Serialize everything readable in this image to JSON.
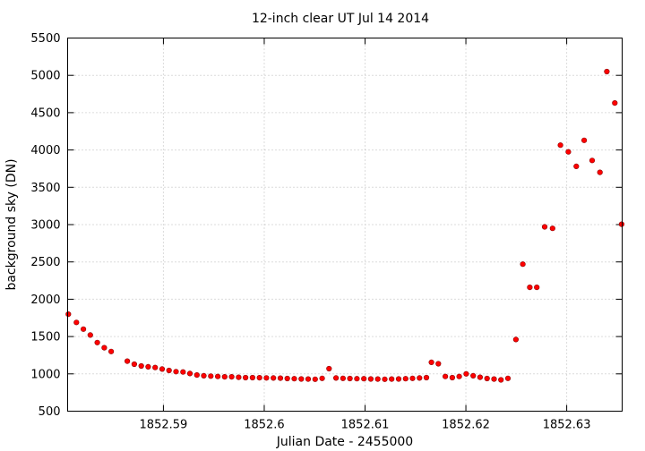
{
  "chart_data": {
    "type": "scatter",
    "title": "12-inch clear UT Jul 14 2014",
    "xlabel": "Julian Date - 2455000",
    "ylabel": "background sky (DN)",
    "xlim": [
      1852.5805,
      1852.6355
    ],
    "ylim": [
      500,
      5500
    ],
    "xticks": [
      1852.59,
      1852.6,
      1852.61,
      1852.62,
      1852.63
    ],
    "xtick_labels": [
      "1852.59",
      "1852.6",
      "1852.61",
      "1852.62",
      "1852.63"
    ],
    "yticks": [
      500,
      1000,
      1500,
      2000,
      2500,
      3000,
      3500,
      4000,
      4500,
      5000,
      5500
    ],
    "ytick_labels": [
      "500",
      "1000",
      "1500",
      "2000",
      "2500",
      "3000",
      "3500",
      "4000",
      "4500",
      "5000",
      "5500"
    ],
    "grid": true,
    "marker_color": "#ff0000",
    "points": [
      [
        1852.58057,
        1800
      ],
      [
        1852.58137,
        1690
      ],
      [
        1852.58206,
        1600
      ],
      [
        1852.58275,
        1520
      ],
      [
        1852.58344,
        1420
      ],
      [
        1852.58413,
        1350
      ],
      [
        1852.58482,
        1300
      ],
      [
        1852.58642,
        1170
      ],
      [
        1852.58711,
        1130
      ],
      [
        1852.5878,
        1105
      ],
      [
        1852.58849,
        1095
      ],
      [
        1852.58918,
        1085
      ],
      [
        1852.58987,
        1065
      ],
      [
        1852.59056,
        1045
      ],
      [
        1852.59125,
        1030
      ],
      [
        1852.59194,
        1025
      ],
      [
        1852.59263,
        1005
      ],
      [
        1852.59332,
        985
      ],
      [
        1852.59401,
        975
      ],
      [
        1852.5947,
        970
      ],
      [
        1852.59539,
        965
      ],
      [
        1852.59608,
        960
      ],
      [
        1852.59677,
        960
      ],
      [
        1852.59746,
        955
      ],
      [
        1852.59815,
        950
      ],
      [
        1852.59884,
        950
      ],
      [
        1852.59953,
        948
      ],
      [
        1852.60022,
        946
      ],
      [
        1852.60091,
        945
      ],
      [
        1852.6016,
        942
      ],
      [
        1852.60229,
        938
      ],
      [
        1852.60298,
        935
      ],
      [
        1852.60367,
        932
      ],
      [
        1852.60436,
        930
      ],
      [
        1852.60505,
        928
      ],
      [
        1852.60574,
        940
      ],
      [
        1852.60643,
        1070
      ],
      [
        1852.60712,
        945
      ],
      [
        1852.60781,
        940
      ],
      [
        1852.6085,
        938
      ],
      [
        1852.60919,
        935
      ],
      [
        1852.60988,
        935
      ],
      [
        1852.61057,
        932
      ],
      [
        1852.61126,
        930
      ],
      [
        1852.61195,
        928
      ],
      [
        1852.61264,
        930
      ],
      [
        1852.61333,
        932
      ],
      [
        1852.61402,
        935
      ],
      [
        1852.61471,
        940
      ],
      [
        1852.6154,
        945
      ],
      [
        1852.61609,
        950
      ],
      [
        1852.61658,
        1155
      ],
      [
        1852.61727,
        1135
      ],
      [
        1852.61796,
        965
      ],
      [
        1852.61865,
        950
      ],
      [
        1852.61934,
        965
      ],
      [
        1852.62003,
        1000
      ],
      [
        1852.62072,
        975
      ],
      [
        1852.62141,
        955
      ],
      [
        1852.6221,
        938
      ],
      [
        1852.62279,
        930
      ],
      [
        1852.62348,
        920
      ],
      [
        1852.62417,
        940
      ],
      [
        1852.62496,
        1460
      ],
      [
        1852.62565,
        2470
      ],
      [
        1852.62634,
        2160
      ],
      [
        1852.62703,
        2160
      ],
      [
        1852.62781,
        2970
      ],
      [
        1852.6286,
        2950
      ],
      [
        1852.62938,
        4065
      ],
      [
        1852.63016,
        3975
      ],
      [
        1852.63095,
        3780
      ],
      [
        1852.63173,
        4130
      ],
      [
        1852.63252,
        3860
      ],
      [
        1852.6333,
        3700
      ],
      [
        1852.63398,
        5050
      ],
      [
        1852.63477,
        4630
      ],
      [
        1852.63545,
        3005
      ]
    ]
  }
}
